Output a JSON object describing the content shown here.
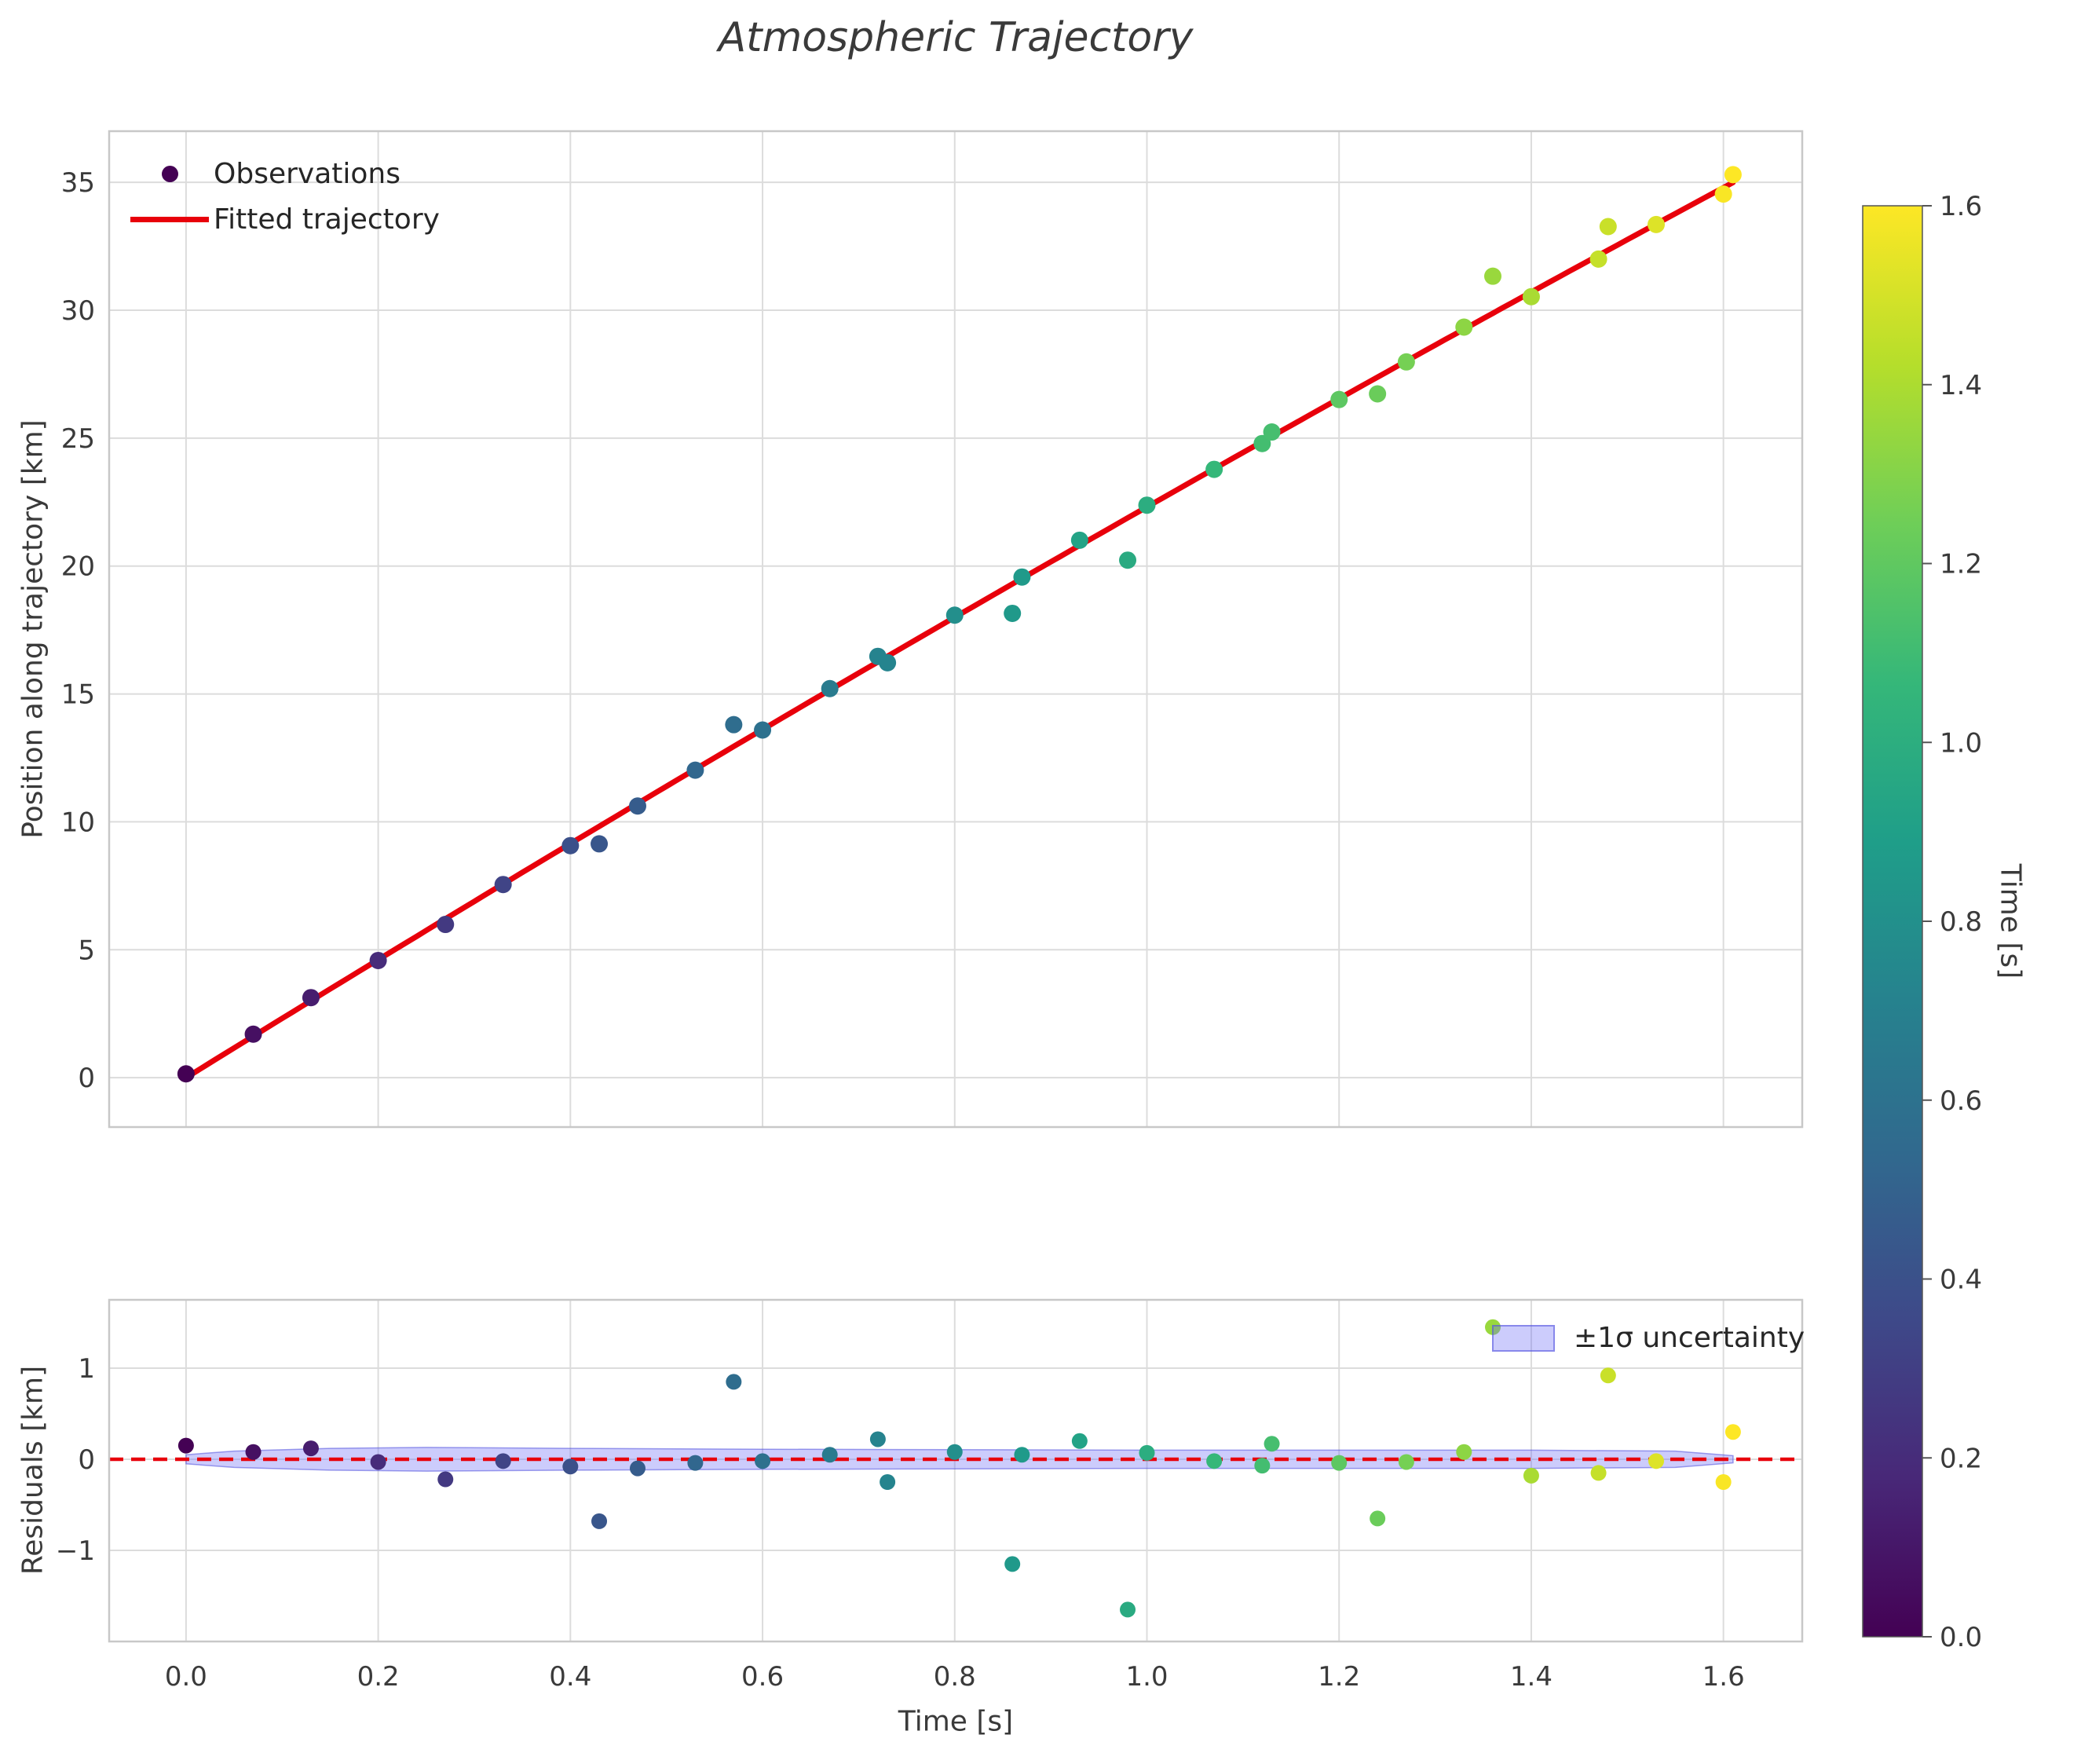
{
  "title": "Atmospheric Trajectory",
  "top_plot": {
    "ylabel": "Position along trajectory [km]",
    "legend": {
      "observations": "Observations",
      "fit": "Fitted trajectory"
    }
  },
  "residual_plot": {
    "ylabel": "Residuals [km]",
    "xlabel": "Time [s]",
    "legend": {
      "band": "±1σ uncertainty"
    }
  },
  "colorbar": {
    "label": "Time [s]",
    "colormap": "viridis",
    "vmin": 0.0,
    "vmax": 1.6,
    "ticks": [
      0.0,
      0.2,
      0.4,
      0.6,
      0.8,
      1.0,
      1.2,
      1.4,
      1.6
    ]
  },
  "colors": {
    "fit_line": "#e8000b",
    "zero_line": "#e8000b",
    "band_fill": "rgba(110,110,245,0.35)",
    "band_edge": "rgba(80,80,220,0.55)",
    "grid": "#dcdcdc",
    "frame": "#c8c8c8",
    "tick_text": "#3a3a3a",
    "legend_marker": "#440154",
    "viridis_anchors": [
      "#440154",
      "#482878",
      "#3e4989",
      "#31688e",
      "#26828e",
      "#1f9e89",
      "#35b779",
      "#6ece58",
      "#b5de2b",
      "#fde725"
    ]
  },
  "chart_data": {
    "type": "scatter",
    "title": "Atmospheric Trajectory",
    "xticks": [
      0.0,
      0.2,
      0.4,
      0.6,
      0.8,
      1.0,
      1.2,
      1.4,
      1.6
    ],
    "observations": {
      "color_by": "time",
      "t": [
        0.0,
        0.07,
        0.13,
        0.2,
        0.27,
        0.33,
        0.4,
        0.43,
        0.47,
        0.53,
        0.57,
        0.6,
        0.67,
        0.72,
        0.73,
        0.8,
        0.86,
        0.87,
        0.93,
        0.98,
        1.0,
        1.07,
        1.12,
        1.13,
        1.2,
        1.24,
        1.27,
        1.33,
        1.36,
        1.4,
        1.47,
        1.48,
        1.53,
        1.6,
        1.61
      ],
      "position": [
        0.15,
        1.7,
        3.13,
        4.58,
        5.99,
        7.55,
        9.07,
        9.14,
        10.62,
        12.02,
        13.8,
        13.59,
        15.21,
        16.47,
        16.22,
        18.08,
        18.15,
        19.57,
        21.01,
        20.23,
        22.38,
        23.78,
        24.79,
        25.24,
        26.51,
        26.73,
        27.98,
        29.34,
        31.33,
        30.53,
        32.0,
        33.27,
        33.35,
        34.54,
        35.3
      ],
      "residual": [
        0.15,
        0.08,
        0.12,
        -0.03,
        -0.22,
        -0.02,
        -0.08,
        -0.68,
        -0.1,
        -0.04,
        0.85,
        -0.02,
        0.05,
        0.22,
        -0.25,
        0.08,
        -1.15,
        0.05,
        0.2,
        -1.65,
        0.07,
        -0.02,
        -0.07,
        0.17,
        -0.04,
        -0.65,
        -0.03,
        0.08,
        1.45,
        -0.18,
        -0.15,
        0.92,
        -0.02,
        -0.25,
        0.3
      ]
    },
    "fit": {
      "model": "s(t) = v*t + c*t^2",
      "v": 23.25,
      "c": -0.94,
      "t_range": [
        0.0,
        1.61
      ]
    },
    "band": {
      "t": [
        0.0,
        0.05,
        0.15,
        0.25,
        0.4,
        0.6,
        0.8,
        1.0,
        1.2,
        1.4,
        1.55,
        1.61
      ],
      "sigma": [
        0.05,
        0.09,
        0.12,
        0.13,
        0.12,
        0.11,
        0.105,
        0.1,
        0.1,
        0.1,
        0.09,
        0.04
      ]
    },
    "panels": [
      {
        "name": "trajectory",
        "ylabel": "Position along trajectory [km]",
        "xlim": [
          -0.08,
          1.682
        ],
        "ylim": [
          -1.93,
          37.0
        ],
        "yticks": [
          0,
          5,
          10,
          15,
          20,
          25,
          30,
          35
        ],
        "x_tick_labels_shown": false
      },
      {
        "name": "residuals",
        "ylabel": "Residuals [km]",
        "xlabel": "Time [s]",
        "xlim": [
          -0.08,
          1.682
        ],
        "ylim": [
          -2.0,
          1.75
        ],
        "yticks": [
          -1,
          0,
          1
        ],
        "zero_line": 0,
        "x_tick_labels_shown": true
      }
    ]
  }
}
